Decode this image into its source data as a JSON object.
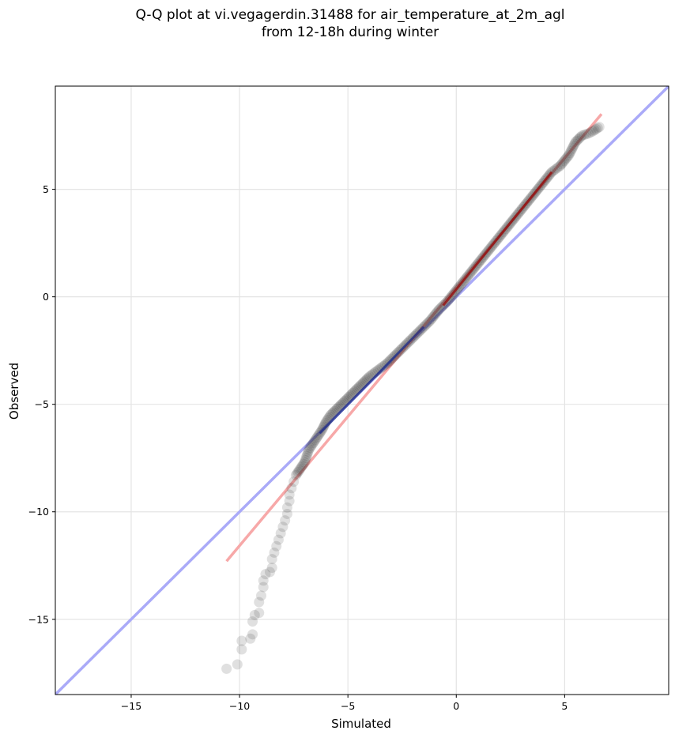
{
  "title": {
    "line1": "Q-Q plot at vi.vegagerdin.31488 for air_temperature_at_2m_agl",
    "line2": "from 12-18h during winter"
  },
  "chart_data": {
    "type": "scatter",
    "title": "Q-Q plot at vi.vegagerdin.31488 for air_temperature_at_2m_agl\nfrom 12-18h during winter",
    "xlabel": "Simulated",
    "ylabel": "Observed",
    "xlim": [
      -18.5,
      9.8
    ],
    "ylim": [
      -18.5,
      9.8
    ],
    "xticks": [
      -15,
      -10,
      -5,
      0,
      5
    ],
    "yticks": [
      -15,
      -10,
      -5,
      0,
      5
    ],
    "xtick_labels": [
      "−15",
      "−10",
      "−5",
      "0",
      "5"
    ],
    "ytick_labels": [
      "−15",
      "−10",
      "−5",
      "0",
      "5"
    ],
    "grid": true,
    "reference_lines": [
      {
        "kind": "identity",
        "color": "#aaaaf8",
        "points": [
          [
            -18.5,
            -18.5
          ],
          [
            9.8,
            9.8
          ]
        ]
      },
      {
        "kind": "fit",
        "color": "#f7a8a8",
        "points": [
          [
            -10.6,
            -12.3
          ],
          [
            6.7,
            8.5
          ]
        ]
      }
    ],
    "highlights": [
      {
        "color": "#1a2a8a",
        "x_range": [
          -6.3,
          -1.5
        ],
        "slope": 0.92
      },
      {
        "color": "#9a0000",
        "x_range": [
          -0.6,
          4.4
        ],
        "slope": 1.21
      }
    ],
    "quantile_points": [
      [
        -10.6,
        -17.3
      ],
      [
        -10.1,
        -17.1
      ],
      [
        -9.9,
        -16.4
      ],
      [
        -9.9,
        -16.0
      ],
      [
        -9.5,
        -15.9
      ],
      [
        -9.4,
        -15.7
      ],
      [
        -9.4,
        -15.1
      ],
      [
        -9.3,
        -14.8
      ],
      [
        -9.1,
        -14.7
      ],
      [
        -9.1,
        -14.2
      ],
      [
        -9.0,
        -13.9
      ],
      [
        -8.9,
        -13.5
      ],
      [
        -8.9,
        -13.2
      ],
      [
        -8.8,
        -12.9
      ],
      [
        -8.6,
        -12.8
      ],
      [
        -8.5,
        -12.6
      ],
      [
        -8.5,
        -12.2
      ],
      [
        -8.4,
        -11.9
      ],
      [
        -8.3,
        -11.6
      ],
      [
        -8.2,
        -11.3
      ],
      [
        -8.1,
        -11.0
      ],
      [
        -8.0,
        -10.7
      ],
      [
        -7.9,
        -10.4
      ],
      [
        -7.8,
        -10.1
      ],
      [
        -7.8,
        -9.8
      ],
      [
        -7.7,
        -9.5
      ],
      [
        -7.7,
        -9.2
      ],
      [
        -7.6,
        -8.9
      ],
      [
        -7.5,
        -8.6
      ],
      [
        -7.4,
        -8.3
      ],
      [
        -7.2,
        -8.0
      ],
      [
        -7.0,
        -7.7
      ],
      [
        -6.9,
        -7.4
      ],
      [
        -6.8,
        -7.1
      ],
      [
        -6.6,
        -6.8
      ],
      [
        -6.4,
        -6.5
      ],
      [
        -6.2,
        -6.2
      ],
      [
        -6.0,
        -5.8
      ],
      [
        -5.8,
        -5.5
      ],
      [
        -5.5,
        -5.2
      ],
      [
        -5.2,
        -4.9
      ],
      [
        -4.9,
        -4.6
      ],
      [
        -4.6,
        -4.3
      ],
      [
        -4.3,
        -4.0
      ],
      [
        -4.0,
        -3.7
      ],
      [
        -3.6,
        -3.4
      ],
      [
        -3.2,
        -3.1
      ],
      [
        -2.8,
        -2.7
      ],
      [
        -2.4,
        -2.3
      ],
      [
        -2.0,
        -1.9
      ],
      [
        -1.6,
        -1.5
      ],
      [
        -1.2,
        -1.1
      ],
      [
        -0.8,
        -0.6
      ],
      [
        -0.4,
        -0.2
      ],
      [
        0.0,
        0.3
      ],
      [
        0.4,
        0.8
      ],
      [
        0.8,
        1.3
      ],
      [
        1.2,
        1.8
      ],
      [
        1.6,
        2.3
      ],
      [
        2.0,
        2.8
      ],
      [
        2.4,
        3.3
      ],
      [
        2.8,
        3.8
      ],
      [
        3.2,
        4.3
      ],
      [
        3.6,
        4.8
      ],
      [
        4.0,
        5.3
      ],
      [
        4.4,
        5.8
      ],
      [
        4.8,
        6.1
      ],
      [
        5.2,
        6.6
      ],
      [
        5.5,
        7.2
      ],
      [
        5.8,
        7.5
      ],
      [
        6.1,
        7.6
      ],
      [
        6.3,
        7.7
      ],
      [
        6.6,
        7.9
      ]
    ]
  }
}
